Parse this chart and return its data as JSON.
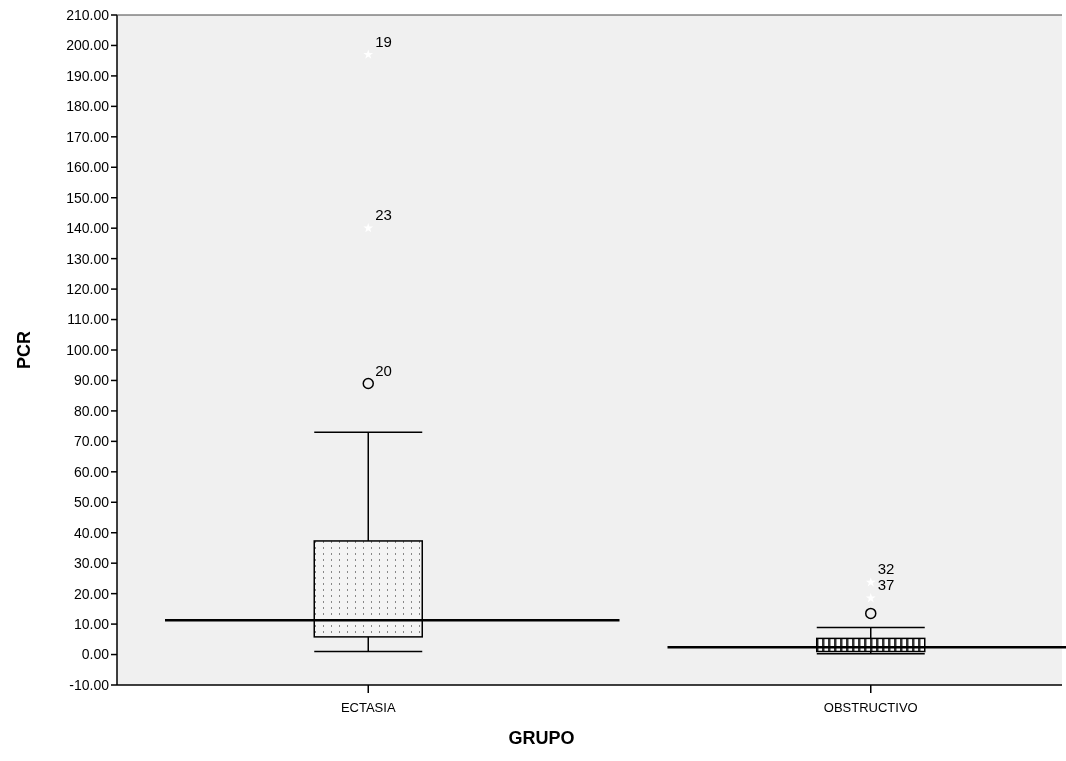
{
  "chart_data": {
    "type": "box",
    "xlabel": "GRUPO",
    "ylabel": "PCR",
    "categories": [
      "ECTASIA",
      "OBSTRUCTIVO"
    ],
    "boxes": [
      {
        "low": 1,
        "q1": 5.8,
        "median": 11.3,
        "q3": 37.3,
        "high": 73,
        "outliers": [
          197,
          140,
          89
        ]
      },
      {
        "low": 0.3,
        "q1": 1,
        "median": 2.4,
        "q3": 5.3,
        "high": 8.9,
        "outliers": [
          23.7,
          18.5,
          13.5
        ]
      }
    ],
    "annotations": [
      "19",
      "23",
      "20",
      "32",
      "37"
    ],
    "ylim": [
      -10,
      210
    ],
    "yticks": [
      {
        "value": -10,
        "label": "-10.00"
      },
      {
        "value": 0,
        "label": "0.00"
      },
      {
        "value": 10,
        "label": "10.00"
      },
      {
        "value": 20,
        "label": "20.00"
      },
      {
        "value": 30,
        "label": "30.00"
      },
      {
        "value": 40,
        "label": "40.00"
      },
      {
        "value": 50,
        "label": "50.00"
      },
      {
        "value": 60,
        "label": "60.00"
      },
      {
        "value": 70,
        "label": "70.00"
      },
      {
        "value": 80,
        "label": "80.00"
      },
      {
        "value": 90,
        "label": "90.00"
      },
      {
        "value": 100,
        "label": "100.00"
      },
      {
        "value": 110,
        "label": "110.00"
      },
      {
        "value": 120,
        "label": "120.00"
      },
      {
        "value": 130,
        "label": "130.00"
      },
      {
        "value": 140,
        "label": "140.00"
      },
      {
        "value": 150,
        "label": "150.00"
      },
      {
        "value": 160,
        "label": "160.00"
      },
      {
        "value": 170,
        "label": "170.00"
      },
      {
        "value": 180,
        "label": "180.00"
      },
      {
        "value": 190,
        "label": "190.00"
      },
      {
        "value": 200,
        "label": "200.00"
      },
      {
        "value": 210,
        "label": "210.00"
      }
    ],
    "grid": false
  }
}
